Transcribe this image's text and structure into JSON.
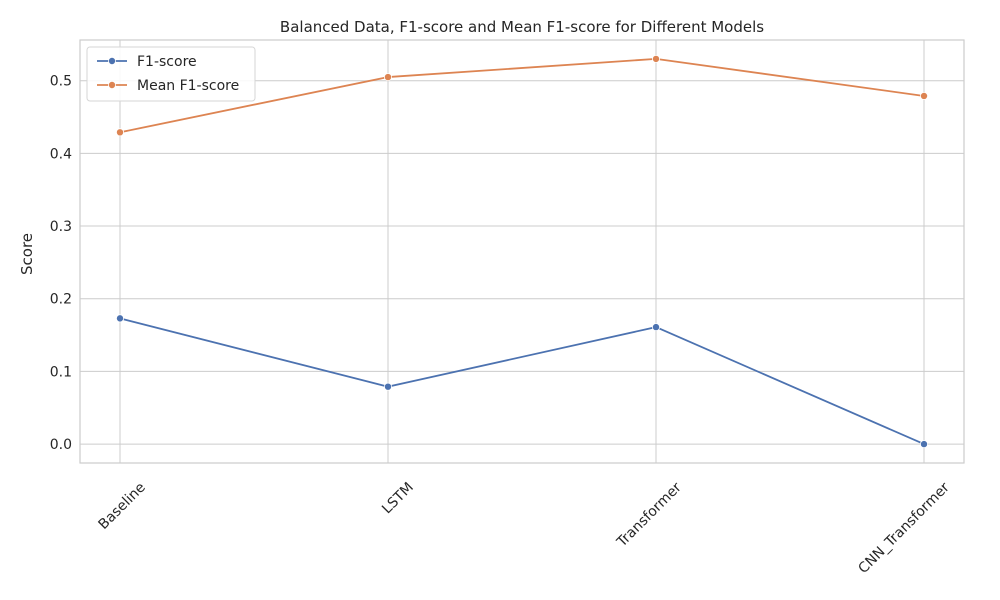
{
  "chart_data": {
    "type": "line",
    "title": "Balanced Data, F1-score and Mean F1-score for Different Models",
    "xlabel": "",
    "ylabel": "Score",
    "categories": [
      "Baseline",
      "LSTM",
      "Transformer",
      "CNN_Transformer"
    ],
    "ylim": [
      -0.026,
      0.556
    ],
    "yticks": [
      0.0,
      0.1,
      0.2,
      0.3,
      0.4,
      0.5
    ],
    "ytick_labels": [
      "0.0",
      "0.1",
      "0.2",
      "0.3",
      "0.4",
      "0.5"
    ],
    "grid": true,
    "legend_position": "top-left",
    "series": [
      {
        "name": "F1-score",
        "color": "#4c72b0",
        "values": [
          0.173,
          0.079,
          0.161,
          0.0
        ]
      },
      {
        "name": "Mean F1-score",
        "color": "#dd8452",
        "values": [
          0.429,
          0.505,
          0.53,
          0.479
        ]
      }
    ]
  }
}
